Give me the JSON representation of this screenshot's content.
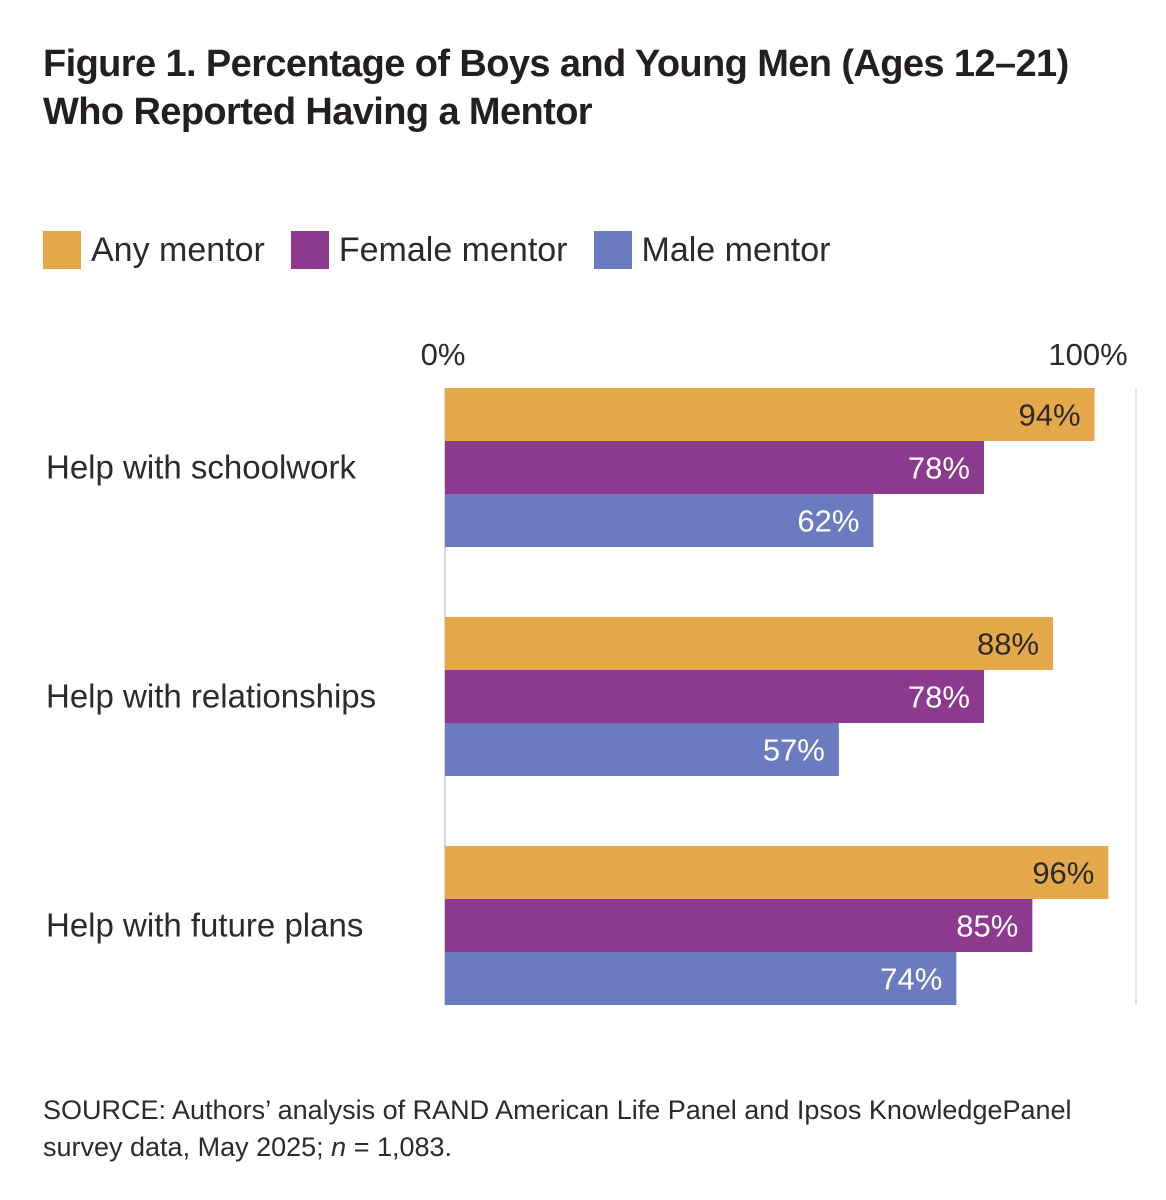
{
  "title": "Figure 1. Percentage of Boys and Young Men (Ages 12–21) Who Reported Having a Mentor",
  "legend": [
    {
      "label": "Any mentor",
      "color": "#E5A84A"
    },
    {
      "label": "Female mentor",
      "color": "#8B3A8E"
    },
    {
      "label": "Male mentor",
      "color": "#6B7BC0"
    }
  ],
  "source": {
    "prefix": "SOURCE: Authors’ analysis of RAND American Life Panel and Ipsos KnowledgePanel survey data, May 2025; ",
    "n_label": "n",
    "suffix": " = 1,083."
  },
  "chart_data": {
    "type": "bar",
    "orientation": "horizontal",
    "categories": [
      "Help with schoolwork",
      "Help with relationships",
      "Help with future plans"
    ],
    "series": [
      {
        "name": "Any mentor",
        "color": "#E5A84A",
        "label_color": "#2b2b2b",
        "values": [
          94,
          88,
          96
        ]
      },
      {
        "name": "Female mentor",
        "color": "#8B3A8E",
        "label_color": "#ffffff",
        "values": [
          78,
          78,
          85
        ]
      },
      {
        "name": "Male mentor",
        "color": "#6B7BC0",
        "label_color": "#ffffff",
        "values": [
          62,
          57,
          74
        ]
      }
    ],
    "xlim": [
      0,
      100
    ],
    "tick_labels": [
      "0%",
      "100%"
    ],
    "value_suffix": "%",
    "title": "Figure 1. Percentage of Boys and Young Men (Ages 12–21) Who Reported Having a Mentor",
    "xlabel": "",
    "ylabel": ""
  }
}
